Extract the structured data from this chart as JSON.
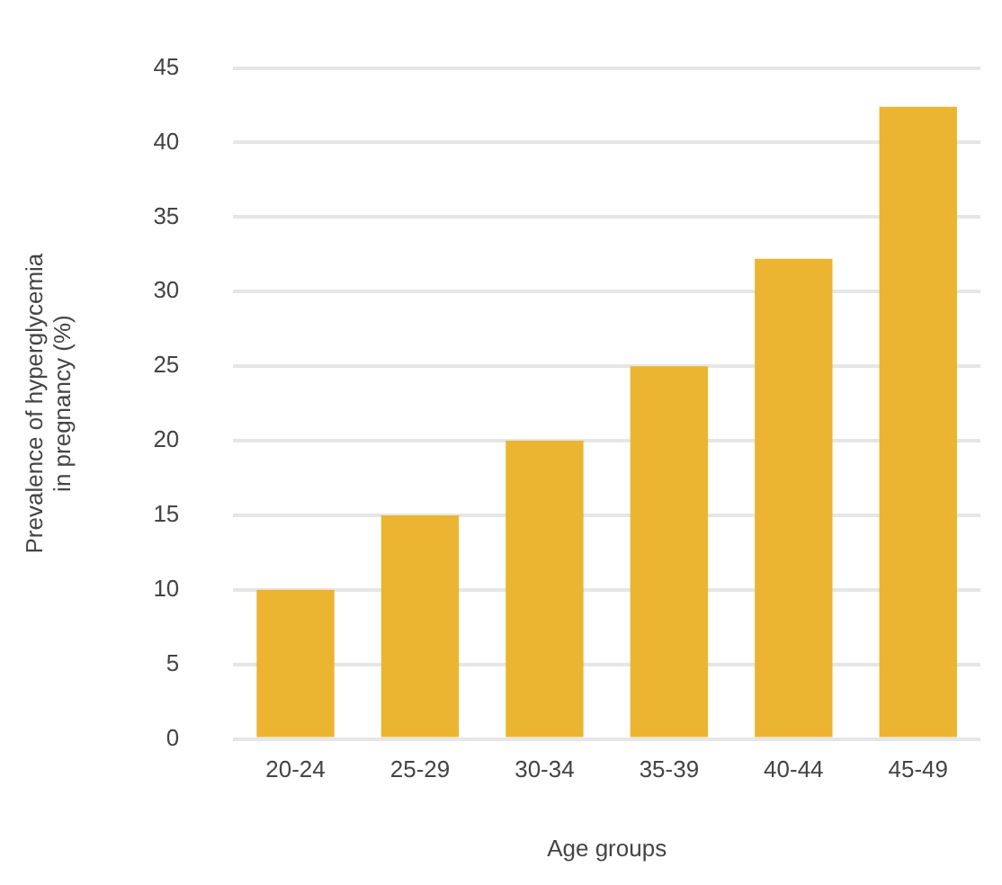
{
  "chart_data": {
    "type": "bar",
    "xlabel": "Age groups",
    "ylabel": "Prevalence of hyperglycemia\nin pregnancy (%)",
    "categories": [
      "20-24",
      "25-29",
      "30-34",
      "35-39",
      "40-44",
      "45-49"
    ],
    "values": [
      10,
      15,
      20,
      25,
      32.2,
      42.4
    ],
    "color": "#ebb531",
    "ylim": [
      0,
      45
    ],
    "yticks": [
      0,
      5,
      10,
      15,
      20,
      25,
      30,
      35,
      40,
      45
    ],
    "grid": "y",
    "legend": false
  }
}
